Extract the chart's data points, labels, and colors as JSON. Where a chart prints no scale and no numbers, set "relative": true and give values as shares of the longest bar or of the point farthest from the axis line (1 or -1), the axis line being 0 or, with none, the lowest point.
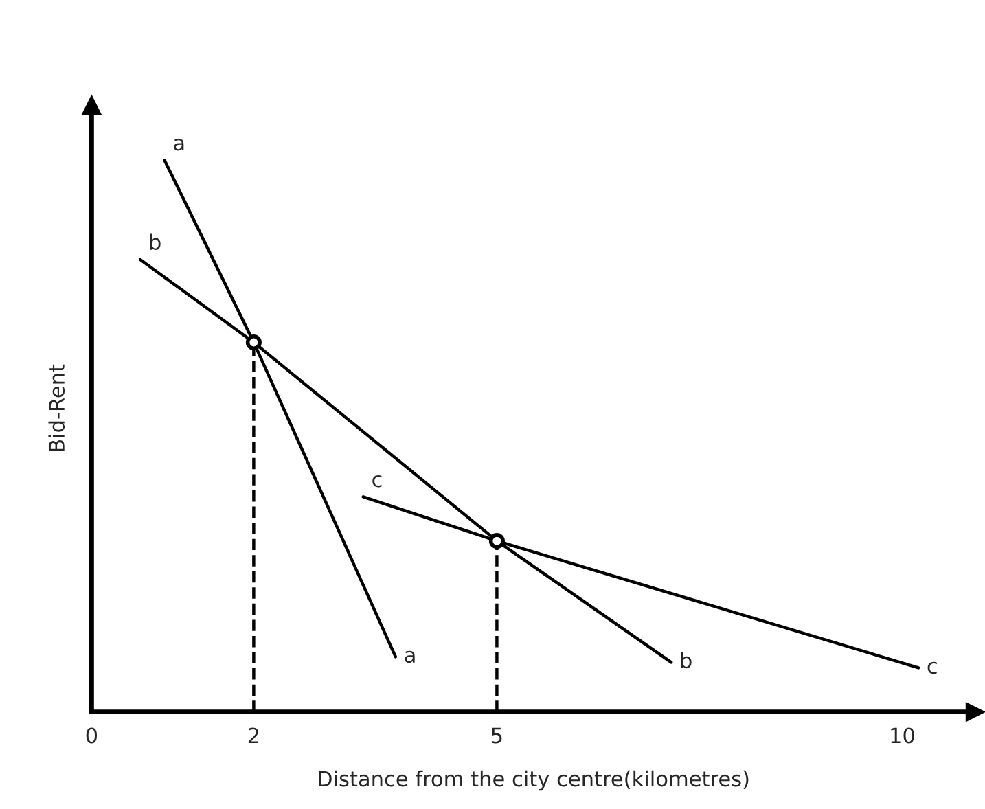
{
  "chart_data": {
    "type": "line",
    "relative": true,
    "xlabel": "Distance from the city centre(kilometres)",
    "ylabel": "Bid-Rent",
    "xlim": [
      0,
      10.9
    ],
    "xticks": [
      0,
      2,
      5,
      10
    ],
    "tick_labels": "x",
    "grid": false,
    "legend": false,
    "marker": "none",
    "line_style": "solid",
    "series": [
      {
        "name": "a",
        "color": "#000000",
        "x": [
          0.9,
          2,
          3.75
        ],
        "values": [
          1.0,
          0.67,
          0.1
        ]
      },
      {
        "name": "b",
        "color": "#000000",
        "x": [
          0.6,
          2,
          5,
          7.15
        ],
        "values": [
          0.82,
          0.67,
          0.31,
          0.09
        ]
      },
      {
        "name": "c",
        "color": "#000000",
        "x": [
          3.35,
          5,
          10.2
        ],
        "values": [
          0.39,
          0.31,
          0.08
        ]
      },
      {
        "type": "line",
        "color": "#000000",
        "line_style": "dashed",
        "x": [
          2,
          2
        ],
        "values": [
          0,
          0.67
        ]
      },
      {
        "type": "line",
        "color": "#000000",
        "line_style": "dashed",
        "x": [
          5,
          5
        ],
        "values": [
          0,
          0.31
        ]
      },
      {
        "type": "scatter",
        "color": "#000000",
        "marker": "circle",
        "x": [
          2,
          5
        ],
        "values": [
          0.67,
          0.31
        ]
      }
    ]
  }
}
